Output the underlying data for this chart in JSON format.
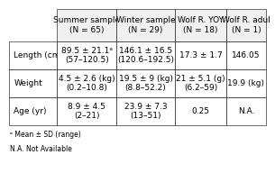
{
  "title_cols": [
    "Summer sample\n(N = 65)",
    "Winter sample\n(N = 29)",
    "Wolf R. YOY\n(N = 18)",
    "Wolf R. adul\n(N = 1)"
  ],
  "row_labels": [
    "Length (cm)",
    "Weight",
    "Age (yr)"
  ],
  "cells": [
    [
      "89.5 ± 21.1ᵃ\n(57–120.5)",
      "146.1 ± 16.5\n(120.6–192.5)",
      "17.3 ± 1.7",
      "146.05"
    ],
    [
      "4.5 ± 2.6 (kg)\n(0.2–10.8)",
      "19.5 ± 9 (kg)\n(8.8–52.2)",
      "21 ± 5.1 (g)\n(6.2–59)",
      "19.9 (kg)"
    ],
    [
      "8.9 ± 4.5\n(2–21)",
      "23.9 ± 7.3\n(13–51)",
      "0.25",
      "N.A."
    ]
  ],
  "footnote1": "ᵃ Mean ± SD (range)",
  "footnote2": "N.A. Not Available",
  "bg_color": "#ffffff",
  "header_fontsize": 6.5,
  "cell_fontsize": 6.5,
  "row_label_fontsize": 6.5
}
